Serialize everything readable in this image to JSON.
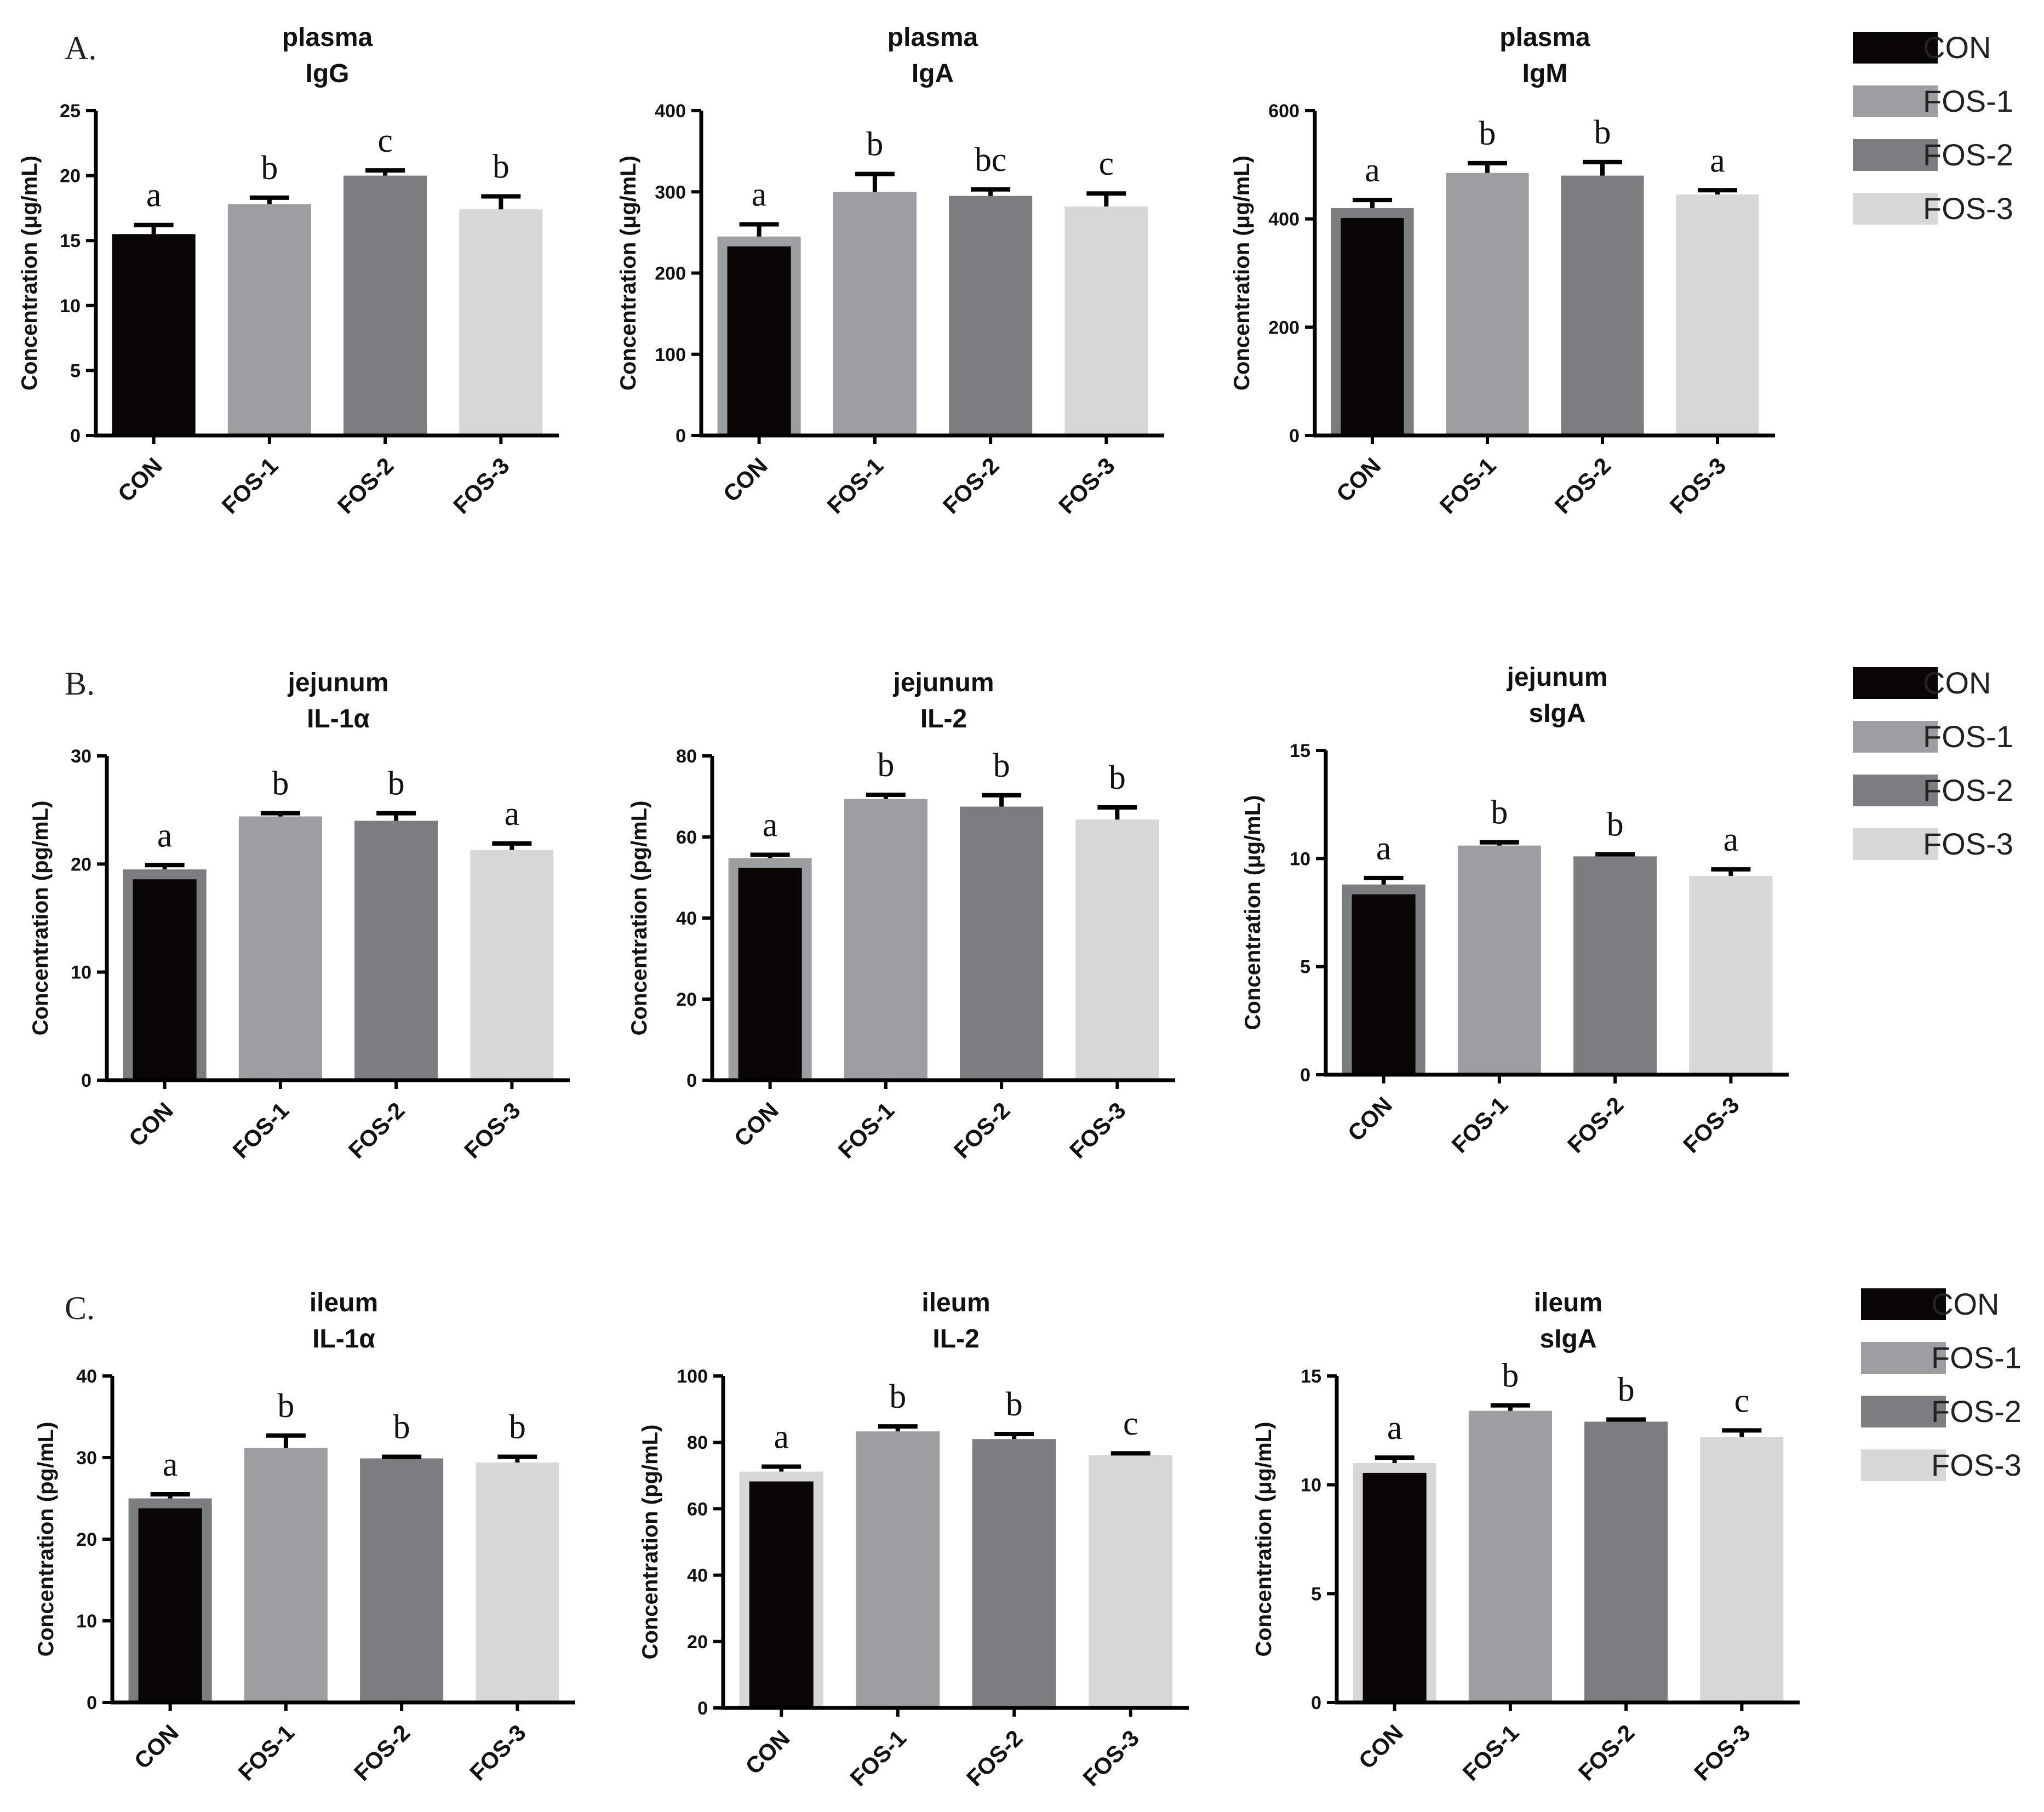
{
  "legend": {
    "entries": [
      {
        "label": "CON",
        "color": "#0a0606"
      },
      {
        "label": "FOS-1",
        "color": "#9d9ea2"
      },
      {
        "label": "FOS-2",
        "color": "#7c7d80"
      },
      {
        "label": "FOS-3",
        "color": "#d6d7d6"
      }
    ]
  },
  "panels": [
    {
      "label": "A."
    },
    {
      "label": "B."
    },
    {
      "label": "C."
    }
  ],
  "chart_data": [
    {
      "type": "bar",
      "panel": "A.",
      "title": [
        "plasma",
        "IgG"
      ],
      "ylabel": "Concentration (μg/mL)",
      "categories": [
        "CON",
        "FOS-1",
        "FOS-2",
        "FOS-3"
      ],
      "values": [
        15.5,
        17.8,
        20.0,
        17.4
      ],
      "errors": [
        0.7,
        0.5,
        0.4,
        1.0
      ],
      "significance": [
        "a",
        "b",
        "c",
        "b"
      ],
      "ylim": [
        0,
        25
      ],
      "yticks": [
        "0",
        "5",
        "10",
        "15",
        "20",
        "25"
      ]
    },
    {
      "type": "bar",
      "panel": "A.",
      "title": [
        "plasma",
        "IgA"
      ],
      "ylabel": "Concentration (μg/mL)",
      "categories": [
        "CON",
        "FOS-1",
        "FOS-2",
        "FOS-3"
      ],
      "values": [
        245,
        300,
        295,
        282
      ],
      "errors": [
        15,
        22,
        8,
        16
      ],
      "significance": [
        "a",
        "b",
        "bc",
        "c"
      ],
      "ylim": [
        0,
        400
      ],
      "yticks": [
        "0",
        "100",
        "200",
        "300",
        "400"
      ]
    },
    {
      "type": "bar",
      "panel": "A.",
      "title": [
        "plasma",
        "IgM"
      ],
      "ylabel": "Concentration (μg/mL)",
      "categories": [
        "CON",
        "FOS-1",
        "FOS-2",
        "FOS-3"
      ],
      "values": [
        420,
        485,
        480,
        445
      ],
      "errors": [
        15,
        18,
        25,
        8
      ],
      "significance": [
        "a",
        "b",
        "b",
        "a"
      ],
      "ylim": [
        0,
        600
      ],
      "yticks": [
        "0",
        "200",
        "400",
        "600"
      ]
    },
    {
      "type": "bar",
      "panel": "B.",
      "title": [
        "jejunum",
        "IL-1α"
      ],
      "ylabel": "Concentration (pg/mL)",
      "categories": [
        "CON",
        "FOS-1",
        "FOS-2",
        "FOS-3"
      ],
      "values": [
        19.5,
        24.4,
        24.0,
        21.3
      ],
      "errors": [
        0.4,
        0.3,
        0.7,
        0.6
      ],
      "significance": [
        "a",
        "b",
        "b",
        "a"
      ],
      "ylim": [
        0,
        30
      ],
      "yticks": [
        "0",
        "10",
        "20",
        "30"
      ]
    },
    {
      "type": "bar",
      "panel": "B.",
      "title": [
        "jejunum",
        "IL-2"
      ],
      "ylabel": "Concentration (pg/mL)",
      "categories": [
        "CON",
        "FOS-1",
        "FOS-2",
        "FOS-3"
      ],
      "values": [
        54.8,
        69.4,
        67.5,
        64.3
      ],
      "errors": [
        0.8,
        1.0,
        2.8,
        3.0
      ],
      "significance": [
        "a",
        "b",
        "b",
        "b"
      ],
      "ylim": [
        0,
        80
      ],
      "yticks": [
        "0",
        "20",
        "40",
        "60",
        "80"
      ]
    },
    {
      "type": "bar",
      "panel": "B.",
      "title": [
        "jejunum",
        "sIgA"
      ],
      "ylabel": "Concentration (μg/mL)",
      "categories": [
        "CON",
        "FOS-1",
        "FOS-2",
        "FOS-3"
      ],
      "values": [
        8.8,
        10.6,
        10.1,
        9.2
      ],
      "errors": [
        0.3,
        0.15,
        0.1,
        0.3
      ],
      "significance": [
        "a",
        "b",
        "b",
        "a"
      ],
      "ylim": [
        0,
        15
      ],
      "yticks": [
        "0",
        "5",
        "10",
        "15"
      ]
    },
    {
      "type": "bar",
      "panel": "C.",
      "title": [
        "ileum",
        "IL-1α"
      ],
      "ylabel": "Concentration (pg/mL)",
      "categories": [
        "CON",
        "FOS-1",
        "FOS-2",
        "FOS-3"
      ],
      "values": [
        25.0,
        31.2,
        29.9,
        29.4
      ],
      "errors": [
        0.5,
        1.5,
        0.2,
        0.7
      ],
      "significance": [
        "a",
        "b",
        "b",
        "b"
      ],
      "ylim": [
        0,
        40
      ],
      "yticks": [
        "0",
        "10",
        "20",
        "30",
        "40"
      ]
    },
    {
      "type": "bar",
      "panel": "C.",
      "title": [
        "ileum",
        "IL-2"
      ],
      "ylabel": "Concentration (pg/mL)",
      "categories": [
        "CON",
        "FOS-1",
        "FOS-2",
        "FOS-3"
      ],
      "values": [
        71.2,
        83.3,
        81.0,
        76.2
      ],
      "errors": [
        1.5,
        1.5,
        1.5,
        0.5
      ],
      "significance": [
        "a",
        "b",
        "b",
        "c"
      ],
      "ylim": [
        0,
        100
      ],
      "yticks": [
        "0",
        "20",
        "40",
        "60",
        "80",
        "100"
      ]
    },
    {
      "type": "bar",
      "panel": "C.",
      "title": [
        "ileum",
        "sIgA"
      ],
      "ylabel": "Concentration (μg/mL)",
      "categories": [
        "CON",
        "FOS-1",
        "FOS-2",
        "FOS-3"
      ],
      "values": [
        11.0,
        13.4,
        12.9,
        12.2
      ],
      "errors": [
        0.25,
        0.25,
        0.1,
        0.3
      ],
      "significance": [
        "a",
        "b",
        "b",
        "c"
      ],
      "ylim": [
        0,
        15
      ],
      "yticks": [
        "0",
        "5",
        "10",
        "15"
      ]
    }
  ]
}
